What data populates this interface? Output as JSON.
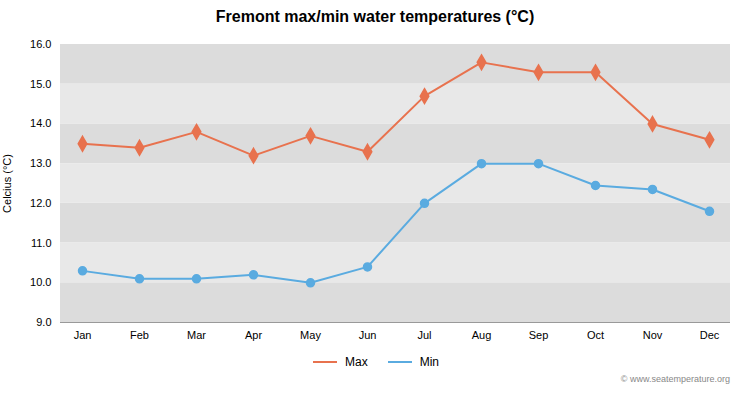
{
  "chart_data": {
    "type": "line",
    "title": "Fremont max/min water temperatures (°C)",
    "ylabel": "Celcius (°C)",
    "categories": [
      "Jan",
      "Feb",
      "Mar",
      "Apr",
      "May",
      "Jun",
      "Jul",
      "Aug",
      "Sep",
      "Oct",
      "Nov",
      "Dec"
    ],
    "series": [
      {
        "name": "Max",
        "color": "#e8724e",
        "marker": "diamond",
        "values": [
          13.5,
          13.4,
          13.8,
          13.2,
          13.7,
          13.3,
          14.7,
          15.55,
          15.3,
          15.3,
          14.0,
          13.6
        ]
      },
      {
        "name": "Min",
        "color": "#5aabe0",
        "marker": "circle",
        "values": [
          10.3,
          10.1,
          10.1,
          10.2,
          10.0,
          10.4,
          12.0,
          13.0,
          13.0,
          12.45,
          12.35,
          11.8
        ]
      }
    ],
    "ylim": [
      9,
      16
    ],
    "yticks": [
      9,
      10,
      11,
      12,
      13,
      14,
      15,
      16
    ],
    "grid": true,
    "legend": "bottom",
    "annotations": [
      "© www.seatemperature.org"
    ]
  }
}
